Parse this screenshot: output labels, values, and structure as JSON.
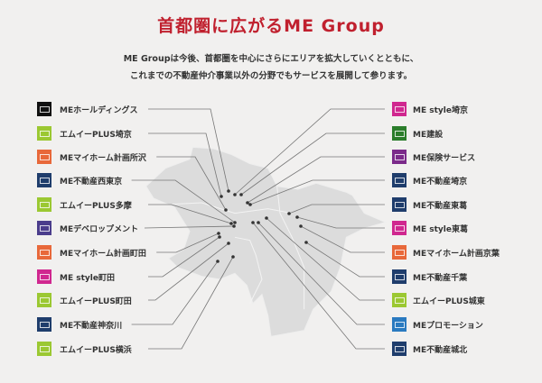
{
  "header": {
    "title": "首都圏に広がるME Group",
    "lead_line1": "ME Groupは今後、首都圏を中心にさらにエリアを拡大していくとともに、",
    "lead_line2": "これまでの不動産仲介事業以外の分野でもサービスを展開して参ります。"
  },
  "colors": {
    "title": "#c0202e",
    "map": "#dcdcdc",
    "line": "#777777"
  },
  "left_items": [
    {
      "label": "MEホールディングス",
      "icon": "me-holdings-logo",
      "color": "#111111"
    },
    {
      "label": "エムイーPLUS埼京",
      "icon": "me-plus-logo",
      "color": "#9bc832"
    },
    {
      "label": "MEマイホーム計画所沢",
      "icon": "my-home-logo",
      "color": "#e8683a"
    },
    {
      "label": "ME不動産西東京",
      "icon": "me-fudosan-logo",
      "color": "#1f3d6c"
    },
    {
      "label": "エムイーPLUS多摩",
      "icon": "me-plus-logo",
      "color": "#9bc832"
    },
    {
      "label": "MEデベロップメント",
      "icon": "me-development-logo",
      "color": "#4b3d8c"
    },
    {
      "label": "MEマイホーム計画町田",
      "icon": "my-home-logo",
      "color": "#e8683a"
    },
    {
      "label": "ME style町田",
      "icon": "me-style-logo",
      "color": "#d0278f"
    },
    {
      "label": "エムイーPLUS町田",
      "icon": "me-plus-logo",
      "color": "#9bc832"
    },
    {
      "label": "ME不動産神奈川",
      "icon": "me-fudosan-logo",
      "color": "#1f3d6c"
    },
    {
      "label": "エムイーPLUS横浜",
      "icon": "me-plus-logo",
      "color": "#9bc832"
    }
  ],
  "right_items": [
    {
      "label": "ME style埼京",
      "icon": "me-style-logo",
      "color": "#d0278f"
    },
    {
      "label": "ME建設",
      "icon": "me-kensetsu-logo",
      "color": "#2b7d2b"
    },
    {
      "label": "ME保険サービス",
      "icon": "me-hoken-logo",
      "color": "#7b2a8a"
    },
    {
      "label": "ME不動産埼京",
      "icon": "me-fudosan-logo",
      "color": "#1f3d6c"
    },
    {
      "label": "ME不動産東葛",
      "icon": "me-fudosan-logo",
      "color": "#1f3d6c"
    },
    {
      "label": "ME style東葛",
      "icon": "me-style-logo",
      "color": "#d0278f"
    },
    {
      "label": "MEマイホーム計画京葉",
      "icon": "my-home-logo",
      "color": "#e8683a"
    },
    {
      "label": "ME不動産千葉",
      "icon": "me-fudosan-logo",
      "color": "#1f3d6c"
    },
    {
      "label": "エムイーPLUS城東",
      "icon": "me-plus-logo",
      "color": "#9bc832"
    },
    {
      "label": "MEプロモーション",
      "icon": "me-promotion-logo",
      "color": "#2a7ac0"
    },
    {
      "label": "ME不動産城北",
      "icon": "me-fudosan-logo",
      "color": "#1f3d6c"
    }
  ]
}
